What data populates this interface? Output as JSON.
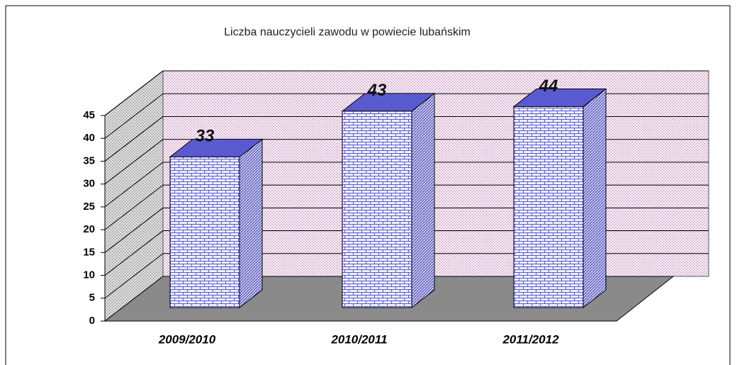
{
  "chart_data": {
    "type": "bar3d",
    "title": "Liczba nauczycieli zawodu w powiecie lubańskim",
    "categories": [
      "2009/2010",
      "2010/2011",
      "2011/2012"
    ],
    "values": [
      33,
      43,
      44
    ],
    "color": "#5a5ad0",
    "ylim": [
      0,
      45
    ],
    "yticks": [
      0,
      5,
      10,
      15,
      20,
      25,
      30,
      35,
      40,
      45
    ],
    "grid": true
  }
}
